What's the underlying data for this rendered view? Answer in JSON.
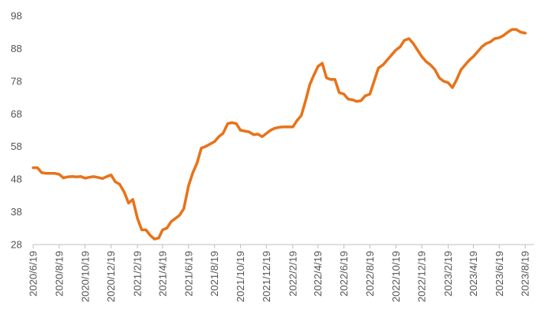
{
  "chart_data": {
    "type": "line",
    "title": "",
    "xlabel": "",
    "ylabel": "",
    "ylim": [
      28,
      98
    ],
    "yticks": [
      28,
      38,
      48,
      58,
      68,
      78,
      88,
      98
    ],
    "grid": false,
    "legend": "none",
    "line_color": "#E8731A",
    "xticks": [
      "2020/6/19",
      "2020/8/19",
      "2020/10/19",
      "2020/12/19",
      "2021/2/19",
      "2021/4/19",
      "2021/6/19",
      "2021/8/19",
      "2021/10/19",
      "2021/12/19",
      "2022/2/19",
      "2022/4/19",
      "2022/6/19",
      "2022/8/19",
      "2022/10/19",
      "2022/12/19",
      "2023/2/19",
      "2023/4/19",
      "2023/6/19",
      "2023/8/19"
    ],
    "x_start": "2020/6/19",
    "x_end": "2023/9/8",
    "series": [
      {
        "name": "",
        "points": [
          [
            "2020/6/19",
            51.5
          ],
          [
            "2020/6/29",
            51.5
          ],
          [
            "2020/7/9",
            50.0
          ],
          [
            "2020/7/19",
            49.8
          ],
          [
            "2020/7/29",
            49.8
          ],
          [
            "2020/8/8",
            49.8
          ],
          [
            "2020/8/19",
            49.5
          ],
          [
            "2020/8/29",
            48.4
          ],
          [
            "2020/9/8",
            48.7
          ],
          [
            "2020/9/19",
            48.8
          ],
          [
            "2020/9/29",
            48.7
          ],
          [
            "2020/10/9",
            48.8
          ],
          [
            "2020/10/19",
            48.3
          ],
          [
            "2020/10/29",
            48.6
          ],
          [
            "2020/11/8",
            48.8
          ],
          [
            "2020/11/19",
            48.5
          ],
          [
            "2020/11/29",
            48.2
          ],
          [
            "2020/12/9",
            48.8
          ],
          [
            "2020/12/19",
            49.3
          ],
          [
            "2020/12/29",
            47.2
          ],
          [
            "2021/1/8",
            46.5
          ],
          [
            "2021/1/19",
            44.0
          ],
          [
            "2021/1/29",
            40.7
          ],
          [
            "2021/2/8",
            41.8
          ],
          [
            "2021/2/19",
            36.0
          ],
          [
            "2021/3/1",
            32.5
          ],
          [
            "2021/3/11",
            32.5
          ],
          [
            "2021/3/21",
            30.8
          ],
          [
            "2021/3/31",
            29.7
          ],
          [
            "2021/4/10",
            30.0
          ],
          [
            "2021/4/19",
            32.5
          ],
          [
            "2021/4/29",
            33.0
          ],
          [
            "2021/5/9",
            35.0
          ],
          [
            "2021/5/19",
            36.0
          ],
          [
            "2021/5/29",
            37.0
          ],
          [
            "2021/6/8",
            39.0
          ],
          [
            "2021/6/19",
            46.0
          ],
          [
            "2021/6/29",
            50.0
          ],
          [
            "2021/7/9",
            53.0
          ],
          [
            "2021/7/19",
            57.5
          ],
          [
            "2021/7/29",
            58.0
          ],
          [
            "2021/8/8",
            58.7
          ],
          [
            "2021/8/19",
            59.5
          ],
          [
            "2021/8/29",
            61.0
          ],
          [
            "2021/9/8",
            62.0
          ],
          [
            "2021/9/19",
            65.0
          ],
          [
            "2021/9/29",
            65.3
          ],
          [
            "2021/10/9",
            65.0
          ],
          [
            "2021/10/19",
            63.0
          ],
          [
            "2021/10/29",
            62.7
          ],
          [
            "2021/11/8",
            62.5
          ],
          [
            "2021/11/19",
            61.6
          ],
          [
            "2021/11/29",
            61.8
          ],
          [
            "2021/12/9",
            61.0
          ],
          [
            "2021/12/19",
            62.0
          ],
          [
            "2021/12/29",
            63.0
          ],
          [
            "2022/1/8",
            63.6
          ],
          [
            "2022/1/19",
            63.9
          ],
          [
            "2022/1/29",
            64.0
          ],
          [
            "2022/2/8",
            64.0
          ],
          [
            "2022/2/19",
            64.0
          ],
          [
            "2022/3/1",
            66.0
          ],
          [
            "2022/3/11",
            67.5
          ],
          [
            "2022/3/21",
            72.0
          ],
          [
            "2022/3/31",
            77.0
          ],
          [
            "2022/4/10",
            80.0
          ],
          [
            "2022/4/19",
            82.5
          ],
          [
            "2022/4/29",
            83.5
          ],
          [
            "2022/5/9",
            79.0
          ],
          [
            "2022/5/19",
            78.5
          ],
          [
            "2022/5/29",
            78.5
          ],
          [
            "2022/6/8",
            74.5
          ],
          [
            "2022/6/19",
            74.0
          ],
          [
            "2022/6/29",
            72.5
          ],
          [
            "2022/7/9",
            72.3
          ],
          [
            "2022/7/19",
            71.8
          ],
          [
            "2022/7/29",
            72.0
          ],
          [
            "2022/8/8",
            73.5
          ],
          [
            "2022/8/19",
            74.0
          ],
          [
            "2022/8/29",
            78.0
          ],
          [
            "2022/9/8",
            82.0
          ],
          [
            "2022/9/19",
            83.0
          ],
          [
            "2022/9/29",
            84.5
          ],
          [
            "2022/10/9",
            86.0
          ],
          [
            "2022/10/19",
            87.5
          ],
          [
            "2022/10/29",
            88.5
          ],
          [
            "2022/11/8",
            90.5
          ],
          [
            "2022/11/19",
            91.0
          ],
          [
            "2022/11/29",
            89.5
          ],
          [
            "2022/12/9",
            87.5
          ],
          [
            "2022/12/19",
            85.5
          ],
          [
            "2022/12/29",
            84.0
          ],
          [
            "2023/1/8",
            83.0
          ],
          [
            "2023/1/19",
            81.5
          ],
          [
            "2023/1/29",
            79.0
          ],
          [
            "2023/2/8",
            78.0
          ],
          [
            "2023/2/19",
            77.5
          ],
          [
            "2023/3/1",
            76.0
          ],
          [
            "2023/3/11",
            78.5
          ],
          [
            "2023/3/21",
            81.5
          ],
          [
            "2023/3/31",
            83.0
          ],
          [
            "2023/4/10",
            84.5
          ],
          [
            "2023/4/19",
            85.5
          ],
          [
            "2023/4/29",
            87.0
          ],
          [
            "2023/5/9",
            88.5
          ],
          [
            "2023/5/19",
            89.5
          ],
          [
            "2023/5/29",
            90.0
          ],
          [
            "2023/6/8",
            91.0
          ],
          [
            "2023/6/19",
            91.3
          ],
          [
            "2023/6/29",
            92.0
          ],
          [
            "2023/7/9",
            93.0
          ],
          [
            "2023/7/19",
            93.8
          ],
          [
            "2023/7/29",
            93.8
          ],
          [
            "2023/8/8",
            93.0
          ],
          [
            "2023/8/19",
            92.7
          ]
        ]
      }
    ]
  }
}
